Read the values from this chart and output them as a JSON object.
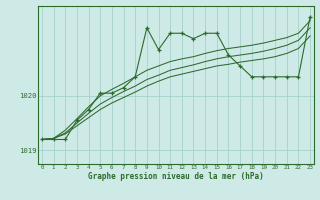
{
  "main_line": [
    1019.2,
    1019.2,
    1019.2,
    1019.55,
    1019.75,
    1020.05,
    1020.05,
    1020.15,
    1020.35,
    1021.25,
    1020.85,
    1021.15,
    1021.15,
    1021.05,
    1021.15,
    1021.15,
    1020.75,
    1020.55,
    1020.35,
    1020.35,
    1020.35,
    1020.35,
    1020.35,
    1021.45
  ],
  "line2": [
    1019.2,
    1019.22,
    1019.3,
    1019.45,
    1019.6,
    1019.75,
    1019.87,
    1019.97,
    1020.07,
    1020.18,
    1020.27,
    1020.35,
    1020.4,
    1020.45,
    1020.5,
    1020.55,
    1020.58,
    1020.62,
    1020.65,
    1020.68,
    1020.72,
    1020.78,
    1020.87,
    1021.1
  ],
  "line3": [
    1019.2,
    1019.22,
    1019.32,
    1019.5,
    1019.68,
    1019.85,
    1019.97,
    1020.08,
    1020.18,
    1020.3,
    1020.38,
    1020.47,
    1020.52,
    1020.57,
    1020.63,
    1020.68,
    1020.72,
    1020.75,
    1020.78,
    1020.82,
    1020.87,
    1020.93,
    1021.02,
    1021.25
  ],
  "line4": [
    1019.2,
    1019.22,
    1019.37,
    1019.58,
    1019.8,
    1020.0,
    1020.12,
    1020.23,
    1020.35,
    1020.47,
    1020.55,
    1020.63,
    1020.68,
    1020.72,
    1020.78,
    1020.83,
    1020.87,
    1020.9,
    1020.93,
    1020.97,
    1021.02,
    1021.07,
    1021.15,
    1021.38
  ],
  "x": [
    0,
    1,
    2,
    3,
    4,
    5,
    6,
    7,
    8,
    9,
    10,
    11,
    12,
    13,
    14,
    15,
    16,
    17,
    18,
    19,
    20,
    21,
    22,
    23
  ],
  "ylim": [
    1018.75,
    1021.65
  ],
  "yticks": [
    1019,
    1020
  ],
  "xticks": [
    0,
    1,
    2,
    3,
    4,
    5,
    6,
    7,
    8,
    9,
    10,
    11,
    12,
    13,
    14,
    15,
    16,
    17,
    18,
    19,
    20,
    21,
    22,
    23
  ],
  "line_color": "#2d6a2d",
  "bg_color": "#ceeae6",
  "grid_color": "#9ecdc8",
  "xlabel": "Graphe pression niveau de la mer (hPa)"
}
